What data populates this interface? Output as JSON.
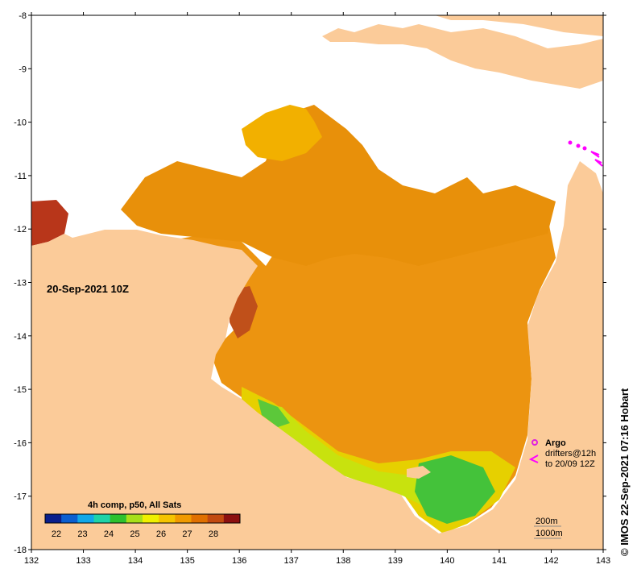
{
  "map": {
    "date_label": "20-Sep-2021 10Z",
    "credit": "© IMOS 22-Sep-2021 07:16 Hobart",
    "x_ticks": [
      "132",
      "133",
      "134",
      "135",
      "136",
      "137",
      "138",
      "139",
      "140",
      "141",
      "142",
      "143"
    ],
    "y_ticks": [
      "-8",
      "-9",
      "-10",
      "-11",
      "-12",
      "-13",
      "-14",
      "-15",
      "-16",
      "-17",
      "-18"
    ]
  },
  "colorbar": {
    "title": "4h comp, p50, All Sats",
    "labels": [
      "22",
      "23",
      "24",
      "25",
      "26",
      "27",
      "28"
    ],
    "colors": [
      "#0a1f8c",
      "#0b5fd0",
      "#12a8e8",
      "#1fd3a8",
      "#2ec12e",
      "#a8e01a",
      "#f0f000",
      "#f5c400",
      "#f09a00",
      "#e07000",
      "#c24a10",
      "#8c1010"
    ]
  },
  "legend": {
    "argo_label": "Argo",
    "drifters_label": "drifters@12h",
    "drifters_to_label": "to 20/09 12Z",
    "depth_200": "200m",
    "depth_1000": "1000m",
    "argo_color": "#e020e0",
    "drifter_color": "#ff00ff"
  },
  "colors": {
    "land": "#fbcb99",
    "sst_warm": "#e8900a",
    "sst_hot": "#c0421a",
    "sst_mid": "#f4b000",
    "sst_cool": "#d8e800",
    "sst_green": "#44c23a"
  }
}
